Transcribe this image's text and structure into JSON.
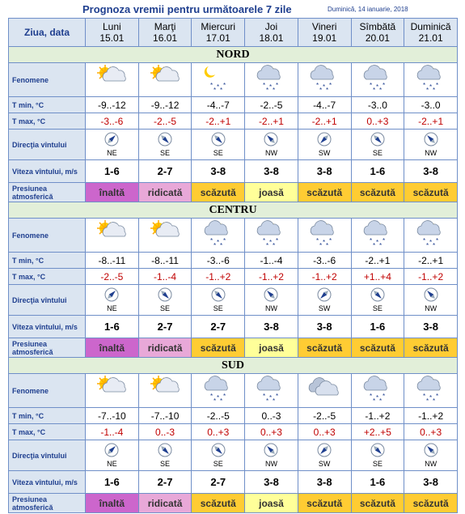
{
  "header": {
    "title": "Prognoza vremii pentru următoarele 7 zile",
    "date": "Duminică, 14 ianuarie, 2018"
  },
  "table": {
    "corner": "Ziua, data",
    "days": [
      {
        "name": "Luni",
        "date": "15.01"
      },
      {
        "name": "Marţi",
        "date": "16.01"
      },
      {
        "name": "Miercuri",
        "date": "17.01"
      },
      {
        "name": "Joi",
        "date": "18.01"
      },
      {
        "name": "Vineri",
        "date": "19.01"
      },
      {
        "name": "Sîmbătă",
        "date": "20.01"
      },
      {
        "name": "Duminică",
        "date": "21.01"
      }
    ],
    "row_labels": {
      "phenomena": "Fenomene",
      "tmin": "T min, °C",
      "tmax": "T max, °C",
      "wind_dir": "Direcţia vîntului",
      "wind_speed": "Viteza vîntului, m/s",
      "pressure": "Presiunea atmosferică"
    },
    "regions": [
      {
        "name": "NORD",
        "tmin": [
          "-9..-12",
          "-9..-12",
          "-4..-7",
          "-2..-5",
          "-4..-7",
          "-3..0",
          "-3..0"
        ],
        "tmax": [
          "-3..-6",
          "-2..-5",
          "-2..+1",
          "-2..+1",
          "-2..+1",
          "0..+3",
          "-2..+1"
        ],
        "wind_dir": [
          "NE",
          "SE",
          "SE",
          "NW",
          "SW",
          "SE",
          "NW"
        ],
        "wind_speed": [
          "1-6",
          "2-7",
          "3-8",
          "3-8",
          "3-8",
          "1-6",
          "3-8"
        ],
        "pressure": [
          {
            "text": "înaltă",
            "color": "#cc66cc"
          },
          {
            "text": "ridicată",
            "color": "#e8a8d8"
          },
          {
            "text": "scăzută",
            "color": "#ffcc33"
          },
          {
            "text": "joasă",
            "color": "#ffff99"
          },
          {
            "text": "scăzută",
            "color": "#ffcc33"
          },
          {
            "text": "scăzută",
            "color": "#ffcc33"
          },
          {
            "text": "scăzută",
            "color": "#ffcc33"
          }
        ]
      },
      {
        "name": "CENTRU",
        "tmin": [
          "-8..-11",
          "-8..-11",
          "-3..-6",
          "-1..-4",
          "-3..-6",
          "-2..+1",
          "-2..+1"
        ],
        "tmax": [
          "-2..-5",
          "-1..-4",
          "-1..+2",
          "-1..+2",
          "-1..+2",
          "+1..+4",
          "-1..+2"
        ],
        "wind_dir": [
          "NE",
          "SE",
          "SE",
          "NW",
          "SW",
          "SE",
          "NW"
        ],
        "wind_speed": [
          "1-6",
          "2-7",
          "2-7",
          "3-8",
          "3-8",
          "1-6",
          "3-8"
        ],
        "pressure": [
          {
            "text": "înaltă",
            "color": "#cc66cc"
          },
          {
            "text": "ridicată",
            "color": "#e8a8d8"
          },
          {
            "text": "scăzută",
            "color": "#ffcc33"
          },
          {
            "text": "joasă",
            "color": "#ffff99"
          },
          {
            "text": "scăzută",
            "color": "#ffcc33"
          },
          {
            "text": "scăzută",
            "color": "#ffcc33"
          },
          {
            "text": "scăzută",
            "color": "#ffcc33"
          }
        ]
      },
      {
        "name": "SUD",
        "tmin": [
          "-7..-10",
          "-7..-10",
          "-2..-5",
          "0..-3",
          "-2..-5",
          "-1..+2",
          "-1..+2"
        ],
        "tmax": [
          "-1..-4",
          "0..-3",
          "0..+3",
          "0..+3",
          "0..+3",
          "+2..+5",
          "0..+3"
        ],
        "wind_dir": [
          "NE",
          "SE",
          "SE",
          "NW",
          "SW",
          "SE",
          "NW"
        ],
        "wind_speed": [
          "1-6",
          "2-7",
          "2-7",
          "3-8",
          "3-8",
          "1-6",
          "3-8"
        ],
        "pressure": [
          {
            "text": "înaltă",
            "color": "#cc66cc"
          },
          {
            "text": "ridicată",
            "color": "#e8a8d8"
          },
          {
            "text": "scăzută",
            "color": "#ffcc33"
          },
          {
            "text": "joasă",
            "color": "#ffff99"
          },
          {
            "text": "scăzută",
            "color": "#ffcc33"
          },
          {
            "text": "scăzută",
            "color": "#ffcc33"
          },
          {
            "text": "scăzută",
            "color": "#ffcc33"
          }
        ]
      }
    ]
  }
}
